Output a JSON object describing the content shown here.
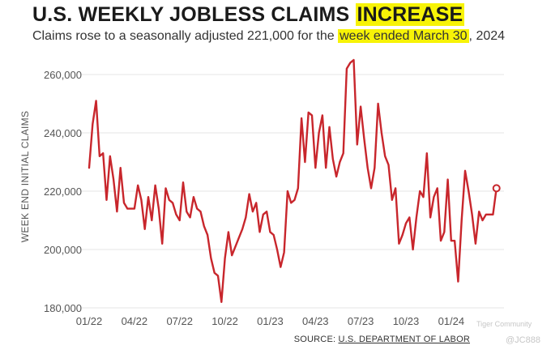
{
  "header": {
    "title_main": "U.S. WEEKLY JOBLESS CLAIMS ",
    "title_highlight": "INCREASE",
    "subtitle_main": "Claims rose to a seasonally adjusted 221,000 for the ",
    "subtitle_highlight": "week ended March 30",
    "subtitle_end": ", 2024"
  },
  "footer": {
    "source_prefix": "SOURCE: ",
    "source_name": "U.S. DEPARTMENT OF LABOR"
  },
  "watermark": {
    "brand": "Tiger Community",
    "handle": "@JC888"
  },
  "colors": {
    "line": "#c8262c",
    "highlight": "#f7f307",
    "grid": "#e6e6e6"
  },
  "chart_data": {
    "type": "line",
    "title": "U.S. WEEKLY JOBLESS CLAIMS INCREASE",
    "subtitle": "Claims rose to a seasonally adjusted 221,000 for the week ended March 30, 2024",
    "ylabel": "WEEK END INITIAL CLAIMS",
    "xlabel": "",
    "ylim": [
      180000,
      265000
    ],
    "yticks": [
      180000,
      200000,
      220000,
      240000,
      260000
    ],
    "ytick_labels": [
      "180,000",
      "200,000",
      "220,000",
      "240,000",
      "260,000"
    ],
    "xlim": [
      0,
      118
    ],
    "xticks": [
      0,
      13,
      26,
      39,
      52,
      65,
      78,
      91,
      104
    ],
    "xtick_labels": [
      "01/22",
      "04/22",
      "07/22",
      "10/22",
      "01/23",
      "04/23",
      "07/23",
      "10/23",
      "01/24"
    ],
    "grid": true,
    "legend": "none",
    "series": [
      {
        "values": [
          228000,
          243000,
          251000,
          232000,
          233000,
          217000,
          232000,
          224000,
          213000,
          228000,
          216000,
          214000,
          214000,
          214000,
          222000,
          217000,
          207000,
          218000,
          210000,
          222000,
          214000,
          202000,
          221000,
          217000,
          216000,
          212000,
          210000,
          223000,
          213000,
          211000,
          218000,
          214000,
          213000,
          208000,
          205000,
          197000,
          192000,
          191000,
          182000,
          197000,
          206000,
          198000,
          201000,
          204000,
          207000,
          211000,
          219000,
          213000,
          216000,
          206000,
          212000,
          213000,
          206000,
          205000,
          200000,
          194000,
          199000,
          220000,
          216000,
          217000,
          221000,
          245000,
          230000,
          247000,
          246000,
          228000,
          240000,
          246000,
          228000,
          242000,
          231000,
          225000,
          230000,
          233000,
          262000,
          264000,
          265000,
          236000,
          249000,
          238000,
          228000,
          221000,
          228000,
          250000,
          240000,
          232000,
          229000,
          217000,
          221000,
          202000,
          205000,
          209000,
          211000,
          200000,
          211000,
          220000,
          218000,
          233000,
          211000,
          218000,
          221000,
          203000,
          206000,
          224000,
          203000,
          203000,
          189000,
          210000,
          227000,
          220000,
          212000,
          202000,
          213000,
          210000,
          212000,
          212000,
          212000,
          221000
        ]
      }
    ],
    "end_marker_value": 221000
  }
}
